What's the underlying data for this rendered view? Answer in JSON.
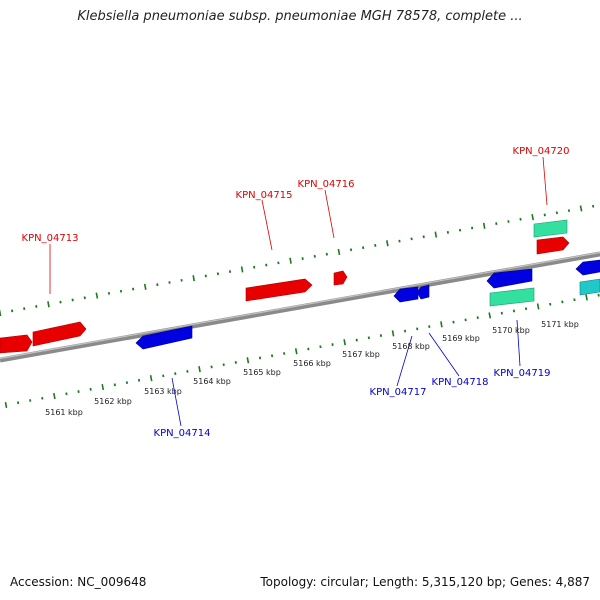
{
  "title": "Klebsiella pneumoniae subsp. pneumoniae MGH 78578, complete ...",
  "footer": {
    "accession": "Accession: NC_009648",
    "summary": "Topology: circular; Length: 5,315,120 bp; Genes: 4,887"
  },
  "colors": {
    "forward_gene": "#ff0000",
    "reverse_gene": "#0000ff",
    "rna_feature": "#33e0a0",
    "other_feature": "#20c8c8",
    "backbone": "#8a8a8a",
    "ticks": "#1e7a1e"
  },
  "scale": {
    "unit": "kbp",
    "labels": [
      "5161 kbp",
      "5162 kbp",
      "5163 kbp",
      "5164 kbp",
      "5165 kbp",
      "5166 kbp",
      "5167 kbp",
      "5168 kbp",
      "5169 kbp",
      "5170 kbp",
      "5171 kbp"
    ]
  },
  "gene_labels": {
    "top": [
      "KPN_04713",
      "KPN_04715",
      "KPN_04716",
      "KPN_04720"
    ],
    "bottom": [
      "KPN_04714",
      "KPN_04717",
      "KPN_04718",
      "KPN_04719"
    ]
  }
}
